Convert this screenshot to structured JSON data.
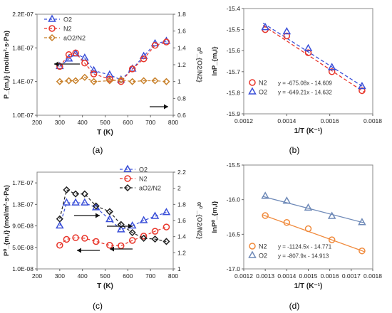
{
  "chart_data": [
    {
      "panel": "(a)",
      "type": "line",
      "xlabel": "T (K)",
      "ylabel": "P_{m,i} (mol/m²·s·Pa)",
      "y2label": "α⁰_{O2/N2}",
      "xlim": [
        200,
        800
      ],
      "ylim": [
        1e-07,
        2.2e-07
      ],
      "y2lim": [
        0.6,
        1.8
      ],
      "xticks": [
        200,
        300,
        400,
        500,
        600,
        700,
        800
      ],
      "yticks": [
        1e-07,
        1.4e-07,
        1.8e-07,
        2.2e-07
      ],
      "ytick_labels": [
        "1.0E-07",
        "1.4E-07",
        "1.8E-07",
        "2.2E-07"
      ],
      "y2ticks": [
        0.6,
        0.8,
        1.0,
        1.2,
        1.4,
        1.6,
        1.8
      ],
      "y2tick_labels": [
        "0.6",
        "0.8",
        "1",
        "1.2",
        "1.4",
        "1.6",
        "1.8"
      ],
      "legend": "top-left",
      "series": [
        {
          "name": "O2",
          "axis": "left",
          "marker": "triangle",
          "color": "#3a4fd8",
          "dash": true,
          "x": [
            300,
            340,
            370,
            410,
            450,
            520,
            570,
            620,
            670,
            720,
            770
          ],
          "y": [
            1.58e-07,
            1.67e-07,
            1.73e-07,
            1.68e-07,
            1.53e-07,
            1.48e-07,
            1.42e-07,
            1.55e-07,
            1.7e-07,
            1.85e-07,
            1.88e-07
          ]
        },
        {
          "name": "N2",
          "axis": "left",
          "marker": "circle",
          "color": "#e8352a",
          "dash": true,
          "x": [
            300,
            340,
            370,
            410,
            450,
            520,
            570,
            620,
            670,
            720,
            770
          ],
          "y": [
            1.58e-07,
            1.72e-07,
            1.74e-07,
            1.62e-07,
            1.49e-07,
            1.43e-07,
            1.4e-07,
            1.55e-07,
            1.67e-07,
            1.83e-07,
            1.87e-07
          ]
        },
        {
          "name": "aO2/N2",
          "axis": "right",
          "marker": "diamond",
          "color": "#c8802a",
          "dash": true,
          "x": [
            300,
            340,
            370,
            410,
            450,
            520,
            570,
            620,
            670,
            720,
            770
          ],
          "y": [
            1.0,
            1.01,
            1.01,
            1.05,
            1.0,
            1.01,
            1.02,
            1.0,
            1.01,
            1.01,
            1.0
          ]
        }
      ],
      "annotations": [
        {
          "type": "arrow",
          "direction": "left"
        },
        {
          "type": "arrow",
          "direction": "right"
        }
      ]
    },
    {
      "panel": "(b)",
      "type": "scatter",
      "xlabel": "1/T (K⁻¹)",
      "ylabel": "lnP_{m,i}",
      "xlim": [
        0.0012,
        0.0018
      ],
      "ylim": [
        -15.9,
        -15.4
      ],
      "xticks": [
        0.0012,
        0.0014,
        0.0016,
        0.0018
      ],
      "xtick_labels": [
        "0.0012",
        "0.0014",
        "0.0016",
        "0.0018"
      ],
      "yticks": [
        -15.9,
        -15.8,
        -15.7,
        -15.6,
        -15.5,
        -15.4
      ],
      "ytick_labels": [
        "-15.9",
        "-15.8",
        "-15.7",
        "-15.6",
        "-15.5",
        "-15.4"
      ],
      "legend": "bottom-left",
      "series": [
        {
          "name": "N2",
          "marker": "circle",
          "color": "#e8352a",
          "equation": "y = -675.08x - 14.609",
          "fit": {
            "slope": -675.08,
            "intercept": -14.609
          },
          "x": [
            0.0013,
            0.0014,
            0.0015,
            0.00161,
            0.00175
          ],
          "y": [
            -15.5,
            -15.53,
            -15.61,
            -15.7,
            -15.79
          ]
        },
        {
          "name": "O2",
          "marker": "triangle",
          "color": "#3a4fd8",
          "equation": "y = -649.21x - 14.632",
          "fit": {
            "slope": -649.21,
            "intercept": -14.632
          },
          "x": [
            0.0013,
            0.0014,
            0.0015,
            0.00161,
            0.00175
          ],
          "y": [
            -15.49,
            -15.51,
            -15.59,
            -15.68,
            -15.77
          ]
        }
      ]
    },
    {
      "panel": "(c)",
      "type": "line",
      "xlabel": "T (K)",
      "ylabel": "P⁰_{m,i} (mol/m²·s·Pa)",
      "y2label": "α⁰ _{O2/N2}",
      "xlim": [
        200,
        800
      ],
      "ylim": [
        1e-08,
        1.9e-07
      ],
      "y2lim": [
        1.0,
        2.2
      ],
      "xticks": [
        200,
        300,
        400,
        500,
        600,
        700,
        800
      ],
      "yticks": [
        1e-08,
        5e-08,
        9e-08,
        1.3e-07,
        1.7e-07
      ],
      "ytick_labels": [
        "1.0E-08",
        "5.0E-08",
        "9.0E-08",
        "1.3E-07",
        "1.7E-07"
      ],
      "y2ticks": [
        1.0,
        1.2,
        1.4,
        1.6,
        1.8,
        2.0,
        2.2
      ],
      "y2tick_labels": [
        "1",
        "1.2",
        "1.4",
        "1.6",
        "1.8",
        "2",
        "2.2"
      ],
      "legend": "top-right",
      "series": [
        {
          "name": "O2",
          "axis": "left",
          "marker": "triangle",
          "color": "#3a4fd8",
          "dash": true,
          "x": [
            300,
            330,
            370,
            410,
            460,
            520,
            570,
            620,
            670,
            720,
            770
          ],
          "y": [
            9e-08,
            1.33e-07,
            1.33e-07,
            1.33e-07,
            1.24e-07,
            1.02e-07,
            8.3e-08,
            9e-08,
            1e-07,
            1.08e-07,
            1.15e-07
          ]
        },
        {
          "name": "N2",
          "axis": "left",
          "marker": "circle",
          "color": "#e8352a",
          "dash": true,
          "x": [
            300,
            330,
            370,
            410,
            460,
            520,
            570,
            620,
            670,
            720,
            770
          ],
          "y": [
            5.4e-08,
            6.5e-08,
            6.8e-08,
            6.7e-08,
            6.1e-08,
            5.4e-08,
            5.3e-08,
            6.3e-08,
            7.1e-08,
            8e-08,
            8.8e-08
          ]
        },
        {
          "name": "aO2/N2",
          "axis": "right",
          "marker": "diamond",
          "color": "#222222",
          "dash": true,
          "x": [
            300,
            330,
            370,
            410,
            460,
            520,
            570,
            620,
            670,
            720,
            770
          ],
          "y": [
            1.62,
            1.98,
            1.93,
            1.93,
            1.78,
            1.71,
            1.55,
            1.45,
            1.38,
            1.37,
            1.34
          ]
        }
      ],
      "annotations": [
        {
          "type": "arrow",
          "direction": "right"
        },
        {
          "type": "arrow",
          "direction": "left"
        }
      ]
    },
    {
      "panel": "(d)",
      "type": "scatter",
      "xlabel": "1/T (K⁻¹)",
      "ylabel": "lnP⁰_{m,i}",
      "xlim": [
        0.0012,
        0.0018
      ],
      "ylim": [
        -17.0,
        -15.5
      ],
      "xticks": [
        0.0012,
        0.0013,
        0.0014,
        0.0015,
        0.0016,
        0.0017,
        0.0018
      ],
      "xtick_labels": [
        "0.0012",
        "0.0013",
        "0.0014",
        "0.0015",
        "0.0016",
        "0.0017",
        "0.0018"
      ],
      "yticks": [
        -17.0,
        -16.5,
        -16.0,
        -15.5
      ],
      "ytick_labels": [
        "-17.0",
        "-16.5",
        "-16.0",
        "-15.5"
      ],
      "legend": "bottom-left",
      "series": [
        {
          "name": "N2",
          "marker": "circle",
          "color": "#f08a3c",
          "equation": "y = -1124.5x - 14.771",
          "fit": {
            "slope": -1124.5,
            "intercept": -14.771
          },
          "x": [
            0.0013,
            0.0014,
            0.0015,
            0.00161,
            0.00175
          ],
          "y": [
            -16.23,
            -16.33,
            -16.42,
            -16.58,
            -16.74
          ]
        },
        {
          "name": "O2",
          "marker": "triangle",
          "color": "#6f8ab8",
          "equation": "y = -807.9x - 14.913",
          "fit": {
            "slope": -807.9,
            "intercept": -14.913
          },
          "x": [
            0.0013,
            0.0014,
            0.0015,
            0.00161,
            0.00175
          ],
          "y": [
            -15.95,
            -16.02,
            -16.12,
            -16.24,
            -16.33
          ]
        }
      ]
    }
  ],
  "captions": [
    "(a)",
    "(b)",
    "(c)",
    "(d)"
  ]
}
